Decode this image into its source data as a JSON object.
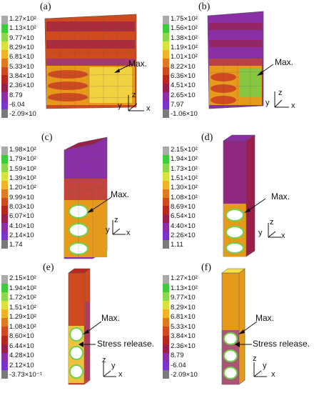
{
  "colors": {
    "scale": [
      "#aaaaaa",
      "#3fcc3c",
      "#8cd84a",
      "#d9e23c",
      "#f0b423",
      "#e07a1e",
      "#cf4a1f",
      "#b8271e",
      "#9a1f4a",
      "#8a2fa5",
      "#7a33cc",
      "#7a7a7a"
    ],
    "orange": "#e69a1c",
    "yellow": "#f5e04a",
    "green": "#6fd24a",
    "red": "#b8261e",
    "purple": "#8b2fb5",
    "mesh": "#555555"
  },
  "panels": [
    {
      "label": "(a)",
      "legend": [
        "1.27×10²",
        "1.13×10²",
        "9.77×10",
        "8.29×10",
        "6.81×10",
        "5.33×10",
        "3.84×10",
        "2.36×10",
        "8.79",
        "-6.04",
        "-2.09×10"
      ],
      "annotations": [
        "Max."
      ]
    },
    {
      "label": "(b)",
      "legend": [
        "1.75×10²",
        "1.56×10²",
        "1.38×10²",
        "1.19×10²",
        "1.01×10²",
        "8.22×10",
        "6.36×10",
        "4.51×10",
        "2.65×10",
        "7.97",
        "-1.06×10"
      ],
      "annotations": [
        "Max."
      ]
    },
    {
      "label": "(c)",
      "legend": [
        "1.98×10²",
        "1.79×10²",
        "1.59×10²",
        "1.39×10²",
        "1.20×10²",
        "9.99×10",
        "8.03×10",
        "6.07×10",
        "4.10×10",
        "2.14×10",
        "1.74"
      ],
      "annotations": [
        "Max."
      ]
    },
    {
      "label": "(d)",
      "legend": [
        "2.15×10²",
        "1.94×10²",
        "1.73×10²",
        "1.51×10²",
        "1.30×10²",
        "1.08×10²",
        "8.69×10",
        "6.54×10",
        "4.40×10",
        "2.26×10",
        "1.11"
      ],
      "annotations": [
        "Max."
      ]
    },
    {
      "label": "(e)",
      "legend": [
        "2.15×10²",
        "1.94×10²",
        "1.72×10²",
        "1.51×10²",
        "1.29×10²",
        "1.08×10²",
        "8.60×10",
        "6.44×10",
        "4.28×10",
        "2.12×10",
        "-3.73×10⁻¹"
      ],
      "annotations": [
        "Max.",
        "Stress release."
      ]
    },
    {
      "label": "(f)",
      "legend": [
        "1.27×10²",
        "1.13×10²",
        "9.77×10",
        "8.29×10",
        "6.81×10",
        "5.33×10",
        "3.84×10",
        "2.36×10",
        "8.79",
        "-6.04",
        "-2.09×10"
      ],
      "annotations": [
        "Max.",
        "Stress release."
      ]
    }
  ],
  "axes": {
    "z": "z",
    "y": "y",
    "x": "x"
  }
}
